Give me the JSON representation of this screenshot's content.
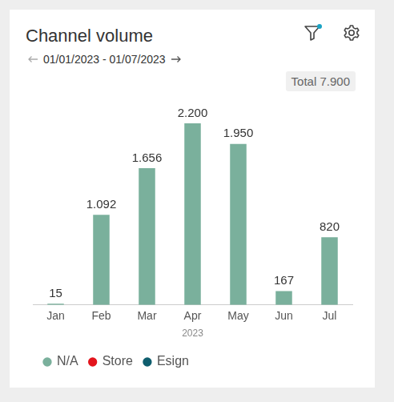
{
  "chart_data": {
    "type": "bar",
    "title": "Channel volume",
    "subtitle": "01/01/2023 - 01/07/2023",
    "total": {
      "value": 7900,
      "label": "Total 7.900"
    },
    "x_label": "2023",
    "categories": [
      "Jan",
      "Feb",
      "Mar",
      "Apr",
      "May",
      "Jun",
      "Jul"
    ],
    "series": [
      {
        "name": "N/A",
        "color": "#7ab09c",
        "values": [
          15,
          1092,
          1656,
          2200,
          1950,
          167,
          820
        ],
        "value_labels": [
          "15",
          "1.092",
          "1.656",
          "2.200",
          "1.950",
          "167",
          "820"
        ]
      },
      {
        "name": "Store",
        "color": "#e3141c",
        "values": [
          null,
          null,
          null,
          null,
          null,
          null,
          null
        ]
      },
      {
        "name": "Esign",
        "color": "#0f5e6e",
        "values": [
          null,
          null,
          null,
          null,
          null,
          null,
          null
        ]
      }
    ],
    "ylim": [
      0,
      2200
    ],
    "stacked": true,
    "data_labels": true,
    "grid": false,
    "legend": "bottom",
    "tick_labels": "x"
  }
}
